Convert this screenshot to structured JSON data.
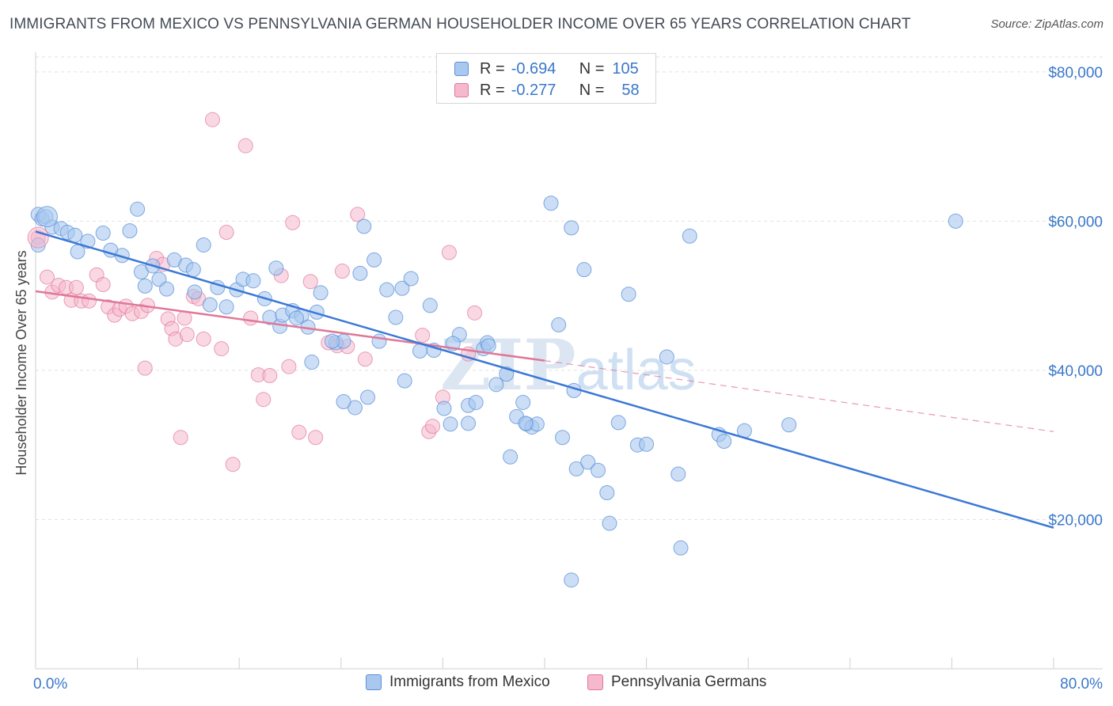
{
  "header": {
    "title": "IMMIGRANTS FROM MEXICO VS PENNSYLVANIA GERMAN HOUSEHOLDER INCOME OVER 65 YEARS CORRELATION CHART",
    "source": "Source: ZipAtlas.com"
  },
  "watermark": {
    "part1": "ZIP",
    "part2": "atlas"
  },
  "legend": {
    "rows": [
      {
        "r_label": "R =",
        "r_value": "-0.694",
        "n_label": "N =",
        "n_value": "105",
        "color": "#a8c8f0",
        "border": "#5b8fd6"
      },
      {
        "r_label": "R =",
        "r_value": "-0.277",
        "n_label": "N =",
        "n_value": "58",
        "color": "#f6b8cc",
        "border": "#e07799"
      }
    ]
  },
  "bottom_legend": {
    "items": [
      {
        "label": "Immigrants from Mexico",
        "color": "#a8c8f0",
        "border": "#5b8fd6"
      },
      {
        "label": "Pennsylvania Germans",
        "color": "#f6b8cc",
        "border": "#e07799"
      }
    ]
  },
  "chart_data": {
    "type": "scatter",
    "title": "IMMIGRANTS FROM MEXICO VS PENNSYLVANIA GERMAN HOUSEHOLDER INCOME OVER 65 YEARS CORRELATION CHART",
    "xlabel": "",
    "ylabel": "Householder Income Over 65 years",
    "xlim": [
      0,
      80
    ],
    "ylim": [
      0,
      82000
    ],
    "x_tick_labels": [
      "0.0%",
      "80.0%"
    ],
    "y_ticks": [
      20000,
      40000,
      60000,
      80000
    ],
    "y_tick_labels": [
      "$20,000",
      "$40,000",
      "$60,000",
      "$80,000"
    ],
    "grid": true,
    "legend_position": "top-center",
    "series": [
      {
        "name": "Immigrants from Mexico",
        "color": "#5b8fd6",
        "fill": "#a8c8f0",
        "trend": {
          "x": [
            0,
            80
          ],
          "y": [
            58600,
            18900
          ],
          "style": "solid"
        },
        "points": [
          [
            0.2,
            60900
          ],
          [
            0.5,
            60300
          ],
          [
            0.8,
            60600
          ],
          [
            0.2,
            56800
          ],
          [
            1.3,
            59200
          ],
          [
            2.0,
            59000
          ],
          [
            2.5,
            58500
          ],
          [
            3.1,
            58100
          ],
          [
            5.3,
            58400
          ],
          [
            8.0,
            61600
          ],
          [
            7.4,
            58700
          ],
          [
            3.3,
            55900
          ],
          [
            4.1,
            57300
          ],
          [
            5.9,
            56100
          ],
          [
            6.8,
            55400
          ],
          [
            8.3,
            53200
          ],
          [
            9.2,
            54000
          ],
          [
            9.7,
            52200
          ],
          [
            10.9,
            54800
          ],
          [
            11.8,
            54100
          ],
          [
            12.4,
            53500
          ],
          [
            13.2,
            56800
          ],
          [
            8.6,
            51300
          ],
          [
            10.3,
            50900
          ],
          [
            13.7,
            48800
          ],
          [
            14.3,
            51100
          ],
          [
            15.0,
            48500
          ],
          [
            15.8,
            50800
          ],
          [
            16.3,
            52200
          ],
          [
            17.1,
            52000
          ],
          [
            18.0,
            49600
          ],
          [
            18.4,
            47100
          ],
          [
            18.9,
            53700
          ],
          [
            19.2,
            45900
          ],
          [
            19.4,
            47400
          ],
          [
            20.2,
            48000
          ],
          [
            20.9,
            47300
          ],
          [
            21.4,
            45800
          ],
          [
            22.1,
            47800
          ],
          [
            22.4,
            50400
          ],
          [
            21.7,
            41100
          ],
          [
            23.6,
            43700
          ],
          [
            24.2,
            43900
          ],
          [
            25.5,
            53000
          ],
          [
            25.8,
            59300
          ],
          [
            26.6,
            54800
          ],
          [
            27.0,
            43900
          ],
          [
            27.6,
            50800
          ],
          [
            28.3,
            47100
          ],
          [
            28.8,
            51000
          ],
          [
            29.5,
            52300
          ],
          [
            29.0,
            38600
          ],
          [
            30.2,
            42600
          ],
          [
            31.0,
            48700
          ],
          [
            31.3,
            42700
          ],
          [
            32.1,
            34900
          ],
          [
            32.6,
            32800
          ],
          [
            33.3,
            44800
          ],
          [
            34.0,
            35300
          ],
          [
            34.6,
            35700
          ],
          [
            35.2,
            42900
          ],
          [
            35.5,
            43700
          ],
          [
            35.6,
            43300
          ],
          [
            36.2,
            38100
          ],
          [
            37.0,
            39500
          ],
          [
            37.3,
            28400
          ],
          [
            37.8,
            33800
          ],
          [
            38.3,
            35700
          ],
          [
            38.6,
            32800
          ],
          [
            39.0,
            32400
          ],
          [
            39.4,
            32800
          ],
          [
            40.5,
            62400
          ],
          [
            41.1,
            46100
          ],
          [
            41.4,
            31000
          ],
          [
            42.1,
            59100
          ],
          [
            42.3,
            37300
          ],
          [
            42.5,
            26800
          ],
          [
            43.1,
            53500
          ],
          [
            43.4,
            27700
          ],
          [
            44.2,
            26600
          ],
          [
            44.9,
            23600
          ],
          [
            45.1,
            19500
          ],
          [
            45.8,
            33000
          ],
          [
            46.6,
            50200
          ],
          [
            47.3,
            30000
          ],
          [
            48.0,
            30100
          ],
          [
            49.6,
            41800
          ],
          [
            50.5,
            26100
          ],
          [
            50.7,
            16200
          ],
          [
            51.4,
            58000
          ],
          [
            53.7,
            31400
          ],
          [
            54.1,
            30500
          ],
          [
            55.7,
            31900
          ],
          [
            59.2,
            32700
          ],
          [
            72.3,
            60000
          ],
          [
            42.1,
            11900
          ],
          [
            38.5,
            32900
          ],
          [
            34.0,
            32900
          ],
          [
            32.8,
            43600
          ],
          [
            26.1,
            36400
          ],
          [
            25.1,
            35000
          ],
          [
            24.2,
            35800
          ],
          [
            23.3,
            43900
          ],
          [
            20.5,
            47000
          ],
          [
            12.5,
            50500
          ]
        ]
      },
      {
        "name": "Pennsylvania Germans",
        "color": "#e07799",
        "fill": "#f6b8cc",
        "trend": {
          "x": [
            0,
            40
          ],
          "y": [
            50600,
            41300
          ],
          "style": "solid"
        },
        "trend_extension": {
          "x": [
            40,
            80
          ],
          "y": [
            41300,
            31800
          ],
          "style": "dashed"
        },
        "points": [
          [
            0.2,
            57800
          ],
          [
            0.9,
            52500
          ],
          [
            1.3,
            50500
          ],
          [
            1.8,
            51400
          ],
          [
            2.4,
            51100
          ],
          [
            2.8,
            49400
          ],
          [
            3.2,
            51100
          ],
          [
            3.6,
            49300
          ],
          [
            4.2,
            49300
          ],
          [
            4.8,
            52800
          ],
          [
            5.3,
            51500
          ],
          [
            5.7,
            48500
          ],
          [
            6.2,
            47400
          ],
          [
            6.6,
            48200
          ],
          [
            7.1,
            48600
          ],
          [
            7.6,
            47600
          ],
          [
            8.3,
            47900
          ],
          [
            8.8,
            48700
          ],
          [
            8.6,
            40300
          ],
          [
            9.5,
            55000
          ],
          [
            10.0,
            54200
          ],
          [
            10.4,
            46900
          ],
          [
            10.7,
            45600
          ],
          [
            11.0,
            44200
          ],
          [
            11.7,
            47000
          ],
          [
            11.4,
            31000
          ],
          [
            11.9,
            44800
          ],
          [
            12.4,
            49900
          ],
          [
            12.8,
            49600
          ],
          [
            13.2,
            44200
          ],
          [
            13.9,
            73600
          ],
          [
            14.6,
            42900
          ],
          [
            15.0,
            58500
          ],
          [
            15.5,
            27400
          ],
          [
            16.5,
            70100
          ],
          [
            16.9,
            47000
          ],
          [
            17.5,
            39400
          ],
          [
            17.9,
            36100
          ],
          [
            18.4,
            39300
          ],
          [
            19.3,
            52700
          ],
          [
            19.9,
            40500
          ],
          [
            20.2,
            59800
          ],
          [
            20.7,
            31700
          ],
          [
            21.6,
            51900
          ],
          [
            22.0,
            31000
          ],
          [
            23.0,
            43700
          ],
          [
            23.7,
            43300
          ],
          [
            24.1,
            53300
          ],
          [
            24.5,
            43200
          ],
          [
            25.3,
            60900
          ],
          [
            25.9,
            41500
          ],
          [
            30.4,
            44700
          ],
          [
            30.9,
            31800
          ],
          [
            31.2,
            32500
          ],
          [
            32.0,
            36400
          ],
          [
            32.5,
            55800
          ],
          [
            34.0,
            42200
          ],
          [
            34.5,
            47700
          ]
        ]
      }
    ]
  }
}
